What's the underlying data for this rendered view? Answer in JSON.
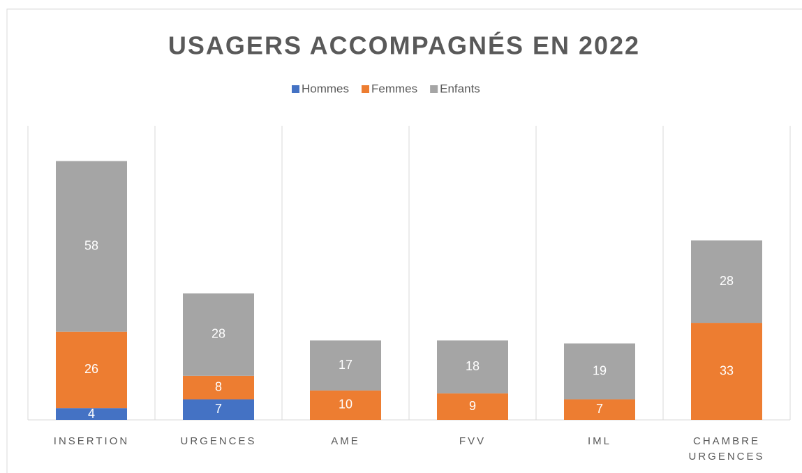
{
  "chart_data": {
    "type": "stacked_bar",
    "title": "USAGERS ACCOMPAGNÉS EN 2022",
    "categories": [
      "INSERTION",
      "URGENCES",
      "AME",
      "FVV",
      "IML",
      "CHAMBRE URGENCES"
    ],
    "series": [
      {
        "name": "Hommes",
        "color": "#4472c4",
        "values": [
          4,
          7,
          0,
          0,
          0,
          0
        ]
      },
      {
        "name": "Femmes",
        "color": "#ed7d31",
        "values": [
          26,
          8,
          10,
          9,
          7,
          33
        ]
      },
      {
        "name": "Enfants",
        "color": "#a5a5a5",
        "values": [
          58,
          28,
          17,
          18,
          19,
          28
        ]
      }
    ],
    "ylim": [
      0,
      100
    ],
    "legend": "top"
  }
}
